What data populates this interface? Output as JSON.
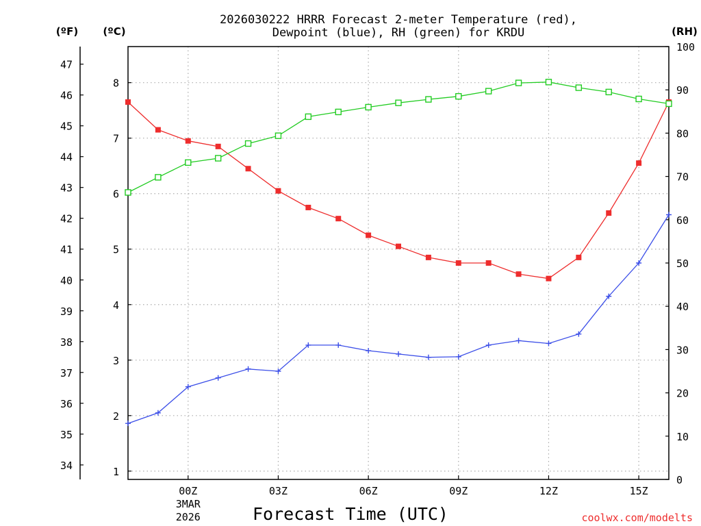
{
  "chart_data": {
    "type": "line",
    "title_line1": "2026030222 HRRR Forecast 2-meter Temperature (red),",
    "title_line2": "Dewpoint (blue), RH (green) for KRDU",
    "xlabel": "Forecast Time (UTC)",
    "credit": "coolwx.com/modelts",
    "units": {
      "fahrenheit": "(ºF)",
      "celsius": "(ºC)",
      "rh": "(RH)"
    },
    "x_hours": [
      -2,
      -1,
      0,
      1,
      2,
      3,
      4,
      5,
      6,
      7,
      8,
      9,
      10,
      11,
      12,
      13,
      14,
      15,
      16
    ],
    "x_ticks": [
      {
        "hour": 0,
        "label": "00Z",
        "sub1": "3MAR",
        "sub2": "2026"
      },
      {
        "hour": 3,
        "label": "03Z",
        "sub1": "",
        "sub2": ""
      },
      {
        "hour": 6,
        "label": "06Z",
        "sub1": "",
        "sub2": ""
      },
      {
        "hour": 9,
        "label": "09Z",
        "sub1": "",
        "sub2": ""
      },
      {
        "hour": 12,
        "label": "12Z",
        "sub1": "",
        "sub2": ""
      },
      {
        "hour": 15,
        "label": "15Z",
        "sub1": "",
        "sub2": ""
      }
    ],
    "x_range": [
      -2,
      16
    ],
    "celsius_range": [
      0.85,
      8.65
    ],
    "celsius_ticks": [
      "1",
      "2",
      "3",
      "4",
      "5",
      "6",
      "7",
      "8"
    ],
    "fahrenheit_ticks": [
      "34",
      "35",
      "36",
      "37",
      "38",
      "39",
      "40",
      "41",
      "42",
      "43",
      "44",
      "45",
      "46",
      "47"
    ],
    "rh_range": [
      0,
      100
    ],
    "rh_ticks": [
      "0",
      "10",
      "20",
      "30",
      "40",
      "50",
      "60",
      "70",
      "80",
      "90",
      "100"
    ],
    "series": [
      {
        "name": "Temperature",
        "axis": "celsius",
        "color": "#ee2d2d",
        "marker": "filled-square",
        "values": [
          7.65,
          7.15,
          6.95,
          6.85,
          6.45,
          6.05,
          5.75,
          5.55,
          5.25,
          5.05,
          4.85,
          4.75,
          4.75,
          4.55,
          4.47,
          4.85,
          5.65,
          6.55,
          7.65
        ]
      },
      {
        "name": "Dewpoint",
        "axis": "celsius",
        "color": "#3b4ee8",
        "marker": "plus",
        "values": [
          1.86,
          2.05,
          2.52,
          2.68,
          2.84,
          2.8,
          3.27,
          3.27,
          3.17,
          3.11,
          3.05,
          3.06,
          3.27,
          3.35,
          3.3,
          3.47,
          4.15,
          4.75,
          5.62
        ]
      },
      {
        "name": "RH",
        "axis": "rh",
        "color": "#22cc22",
        "marker": "open-square",
        "values": [
          66.3,
          69.8,
          73.2,
          74.2,
          77.6,
          79.4,
          83.8,
          84.9,
          86.0,
          87.0,
          87.8,
          88.5,
          89.7,
          91.6,
          91.8,
          90.5,
          89.5,
          87.9,
          86.8
        ]
      }
    ]
  }
}
